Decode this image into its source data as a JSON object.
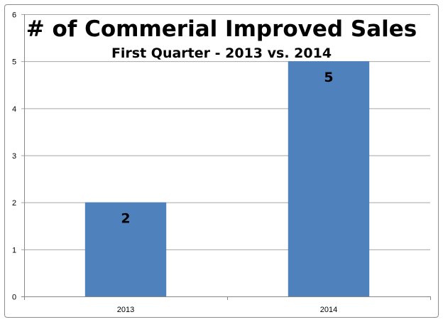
{
  "chart_data": {
    "type": "bar",
    "title": "# of Commerial Improved Sales",
    "subtitle": "First Quarter - 2013 vs. 2014",
    "categories": [
      "2013",
      "2014"
    ],
    "values": [
      2,
      5
    ],
    "data_labels": [
      "2",
      "5"
    ],
    "xlabel": "",
    "ylabel": "",
    "ylim": [
      0,
      6
    ],
    "yticks": [
      "0",
      "1",
      "2",
      "3",
      "4",
      "5",
      "6"
    ],
    "grid": true,
    "legend": "none",
    "bar_color": "#4f81bd"
  }
}
